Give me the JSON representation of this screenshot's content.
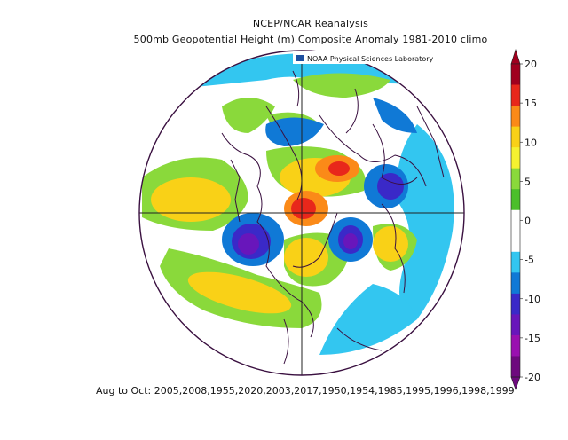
{
  "header": {
    "line1": "NCEP/NCAR Reanalysis",
    "line2": "500mb Geopotential Height (m) Composite Anomaly 1981-2010 climo"
  },
  "logo_text": "NOAA Physical Sciences Laboratory",
  "footer": "Aug to Oct: 2005,2008,1955,2020,2003,2017,1950,1954,1985,1995,1996,1998,1999",
  "colorbar": {
    "ticks": [
      "20",
      "15",
      "10",
      "5",
      "0",
      "-5",
      "-10",
      "-15",
      "-20"
    ],
    "colors": [
      "#a0001e",
      "#e8271b",
      "#fb8a18",
      "#f9d117",
      "#f5f230",
      "#8ad93b",
      "#4bbf2a",
      "#ffffff",
      "#ffffff",
      "#33c6f0",
      "#1079d6",
      "#3a29c8",
      "#6816bb",
      "#9a10b0",
      "#6e0a7e"
    ]
  }
}
